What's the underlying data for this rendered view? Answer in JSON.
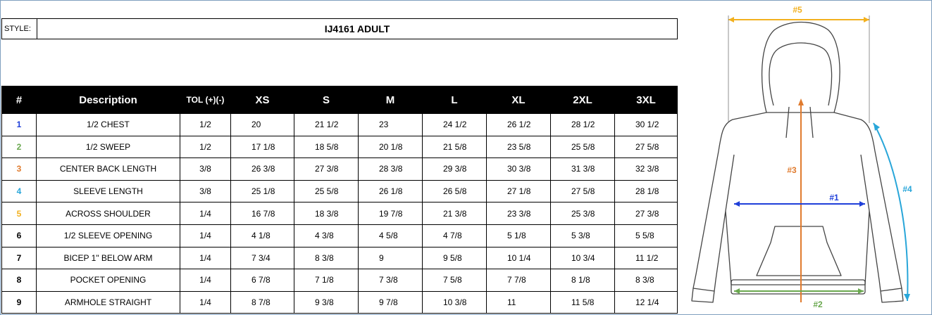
{
  "style": {
    "label": "STYLE:",
    "value": "IJ4161 ADULT"
  },
  "table": {
    "headers": [
      "#",
      "Description",
      "TOL (+)(-)",
      "XS",
      "S",
      "M",
      "L",
      "XL",
      "2XL",
      "3XL"
    ],
    "rows": [
      {
        "num": "1",
        "color": "#1f3fd9",
        "desc": "1/2 CHEST",
        "tol": "1/2",
        "sizes": [
          "20",
          "21 1/2",
          "23",
          "24 1/2",
          "26 1/2",
          "28 1/2",
          "30 1/2"
        ]
      },
      {
        "num": "2",
        "color": "#6aa84f",
        "desc": "1/2 SWEEP",
        "tol": "1/2",
        "sizes": [
          "17 1/8",
          "18 5/8",
          "20 1/8",
          "21 5/8",
          "23 5/8",
          "25 5/8",
          "27 5/8"
        ]
      },
      {
        "num": "3",
        "color": "#e07b2e",
        "desc": "CENTER BACK LENGTH",
        "tol": "3/8",
        "sizes": [
          "26 3/8",
          "27 3/8",
          "28 3/8",
          "29 3/8",
          "30 3/8",
          "31 3/8",
          "32 3/8"
        ]
      },
      {
        "num": "4",
        "color": "#29a6d9",
        "desc": "SLEEVE LENGTH",
        "tol": "3/8",
        "sizes": [
          "25 1/8",
          "25 5/8",
          "26 1/8",
          "26 5/8",
          "27 1/8",
          "27 5/8",
          "28 1/8"
        ]
      },
      {
        "num": "5",
        "color": "#f2b01e",
        "desc": "ACROSS SHOULDER",
        "tol": "1/4",
        "sizes": [
          "16 7/8",
          "18 3/8",
          "19 7/8",
          "21 3/8",
          "23 3/8",
          "25 3/8",
          "27 3/8"
        ]
      },
      {
        "num": "6",
        "color": "#000000",
        "desc": "1/2 SLEEVE OPENING",
        "tol": "1/4",
        "sizes": [
          "4 1/8",
          "4 3/8",
          "4 5/8",
          "4 7/8",
          "5 1/8",
          "5 3/8",
          "5 5/8"
        ]
      },
      {
        "num": "7",
        "color": "#000000",
        "desc": "BICEP 1\" BELOW ARM",
        "tol": "1/4",
        "sizes": [
          "7 3/4",
          "8 3/8",
          "9",
          "9 5/8",
          "10 1/4",
          "10 3/4",
          "11 1/2"
        ]
      },
      {
        "num": "8",
        "color": "#000000",
        "desc": "POCKET OPENING",
        "tol": "1/4",
        "sizes": [
          "6 7/8",
          "7 1/8",
          "7 3/8",
          "7 5/8",
          "7 7/8",
          "8 1/8",
          "8 3/8"
        ]
      },
      {
        "num": "9",
        "color": "#000000",
        "desc": "ARMHOLE STRAIGHT",
        "tol": "1/4",
        "sizes": [
          "8 7/8",
          "9 3/8",
          "9 7/8",
          "10 3/8",
          "11",
          "11 5/8",
          "12 1/4"
        ]
      }
    ]
  },
  "diagram": {
    "labels": {
      "m1": "#1",
      "m2": "#2",
      "m3": "#3",
      "m4": "#4",
      "m5": "#5"
    },
    "colors": {
      "m1": "#1f3fd9",
      "m2": "#6aa84f",
      "m3": "#e07b2e",
      "m4": "#29a6d9",
      "m5": "#f2b01e"
    }
  }
}
